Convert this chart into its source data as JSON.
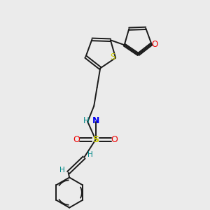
{
  "bg_color": "#ebebeb",
  "bond_color": "#1a1a1a",
  "S_color": "#cccc00",
  "N_color": "#0000ee",
  "O_color": "#ee0000",
  "H_color": "#008888",
  "line_width": 1.4,
  "xlim": [
    0,
    10
  ],
  "ylim": [
    0,
    10
  ]
}
